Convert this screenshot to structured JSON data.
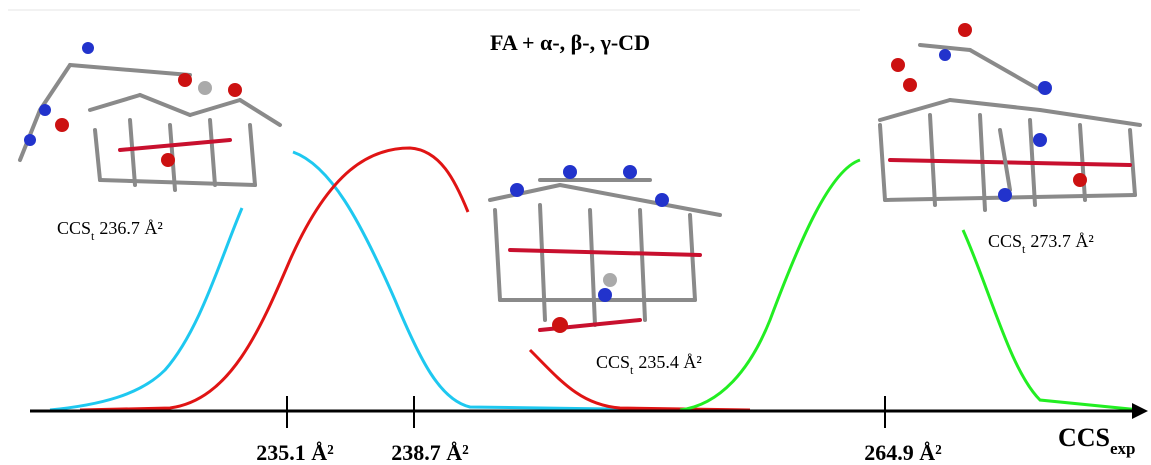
{
  "title": "FA + α-, β-, γ-CD",
  "axis_label": {
    "main": "CCS",
    "sub": "exp"
  },
  "axis_ticks": [
    "235.1 Å²",
    "238.7 Å²",
    "264.9 Å²"
  ],
  "structures": [
    {
      "prefix": "CCS",
      "sub": "t",
      "value": "236.7 Å²"
    },
    {
      "prefix": "CCS",
      "sub": "t",
      "value": "235.4 Å²"
    },
    {
      "prefix": "CCS",
      "sub": "t",
      "value": "273.7 Å²"
    }
  ]
}
